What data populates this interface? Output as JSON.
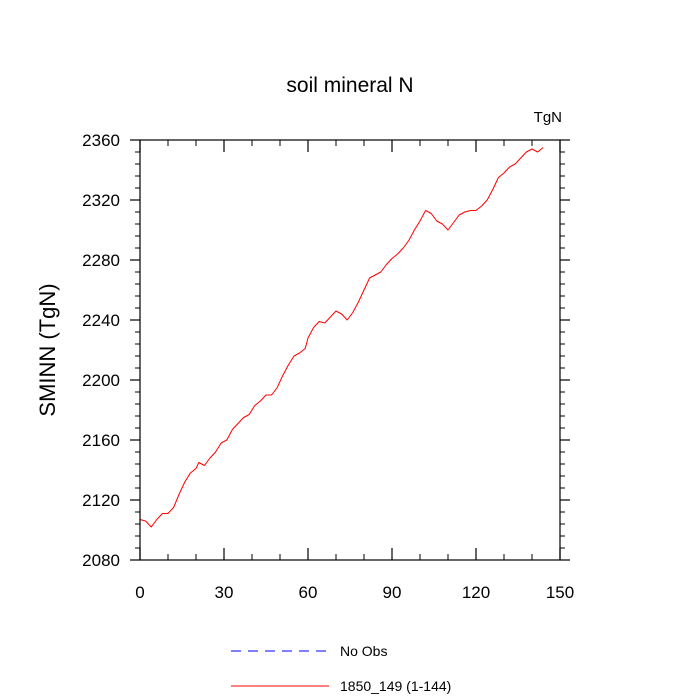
{
  "chart_data": {
    "type": "line",
    "title": "soil mineral N",
    "units_label": "TgN",
    "ylabel": "SMINN  (TgN)",
    "xlabel": "",
    "xlim": [
      0,
      150
    ],
    "ylim": [
      2080,
      2360
    ],
    "xticks": [
      0,
      30,
      60,
      90,
      120,
      150
    ],
    "yticks": [
      2080,
      2120,
      2160,
      2200,
      2240,
      2280,
      2320,
      2360
    ],
    "grid": false,
    "legend_position": "bottom",
    "series": [
      {
        "name": "No Obs",
        "color": "#0000ff",
        "dash": "dashed",
        "x": [],
        "y": []
      },
      {
        "name": "1850_149 (1-144)",
        "color": "#ff0000",
        "dash": "solid",
        "x": [
          0,
          2,
          4,
          6,
          8,
          10,
          12,
          14,
          16,
          18,
          20,
          21,
          23,
          25,
          27,
          29,
          31,
          33,
          35,
          37,
          39,
          41,
          43,
          45,
          47,
          49,
          51,
          53,
          55,
          57,
          59,
          60,
          62,
          64,
          66,
          68,
          70,
          72,
          74,
          76,
          78,
          80,
          82,
          84,
          86,
          88,
          90,
          92,
          94,
          96,
          98,
          100,
          102,
          104,
          106,
          108,
          110,
          112,
          114,
          116,
          118,
          120,
          122,
          124,
          126,
          128,
          130,
          132,
          134,
          136,
          138,
          140,
          142,
          144
        ],
        "y": [
          2107,
          2106,
          2102,
          2107,
          2111,
          2111,
          2115,
          2124,
          2132,
          2138,
          2141,
          2145,
          2143,
          2148,
          2152,
          2158,
          2160,
          2167,
          2171,
          2175,
          2177,
          2183,
          2186,
          2190,
          2190,
          2195,
          2203,
          2210,
          2216,
          2218,
          2221,
          2228,
          2235,
          2239,
          2238,
          2242,
          2246,
          2244,
          2240,
          2245,
          2252,
          2260,
          2268,
          2270,
          2272,
          2277,
          2281,
          2284,
          2288,
          2293,
          2300,
          2306,
          2313,
          2311,
          2306,
          2304,
          2300,
          2305,
          2310,
          2312,
          2313,
          2313,
          2316,
          2320,
          2327,
          2335,
          2338,
          2342,
          2344,
          2348,
          2352,
          2354,
          2352,
          2355
        ]
      }
    ]
  }
}
